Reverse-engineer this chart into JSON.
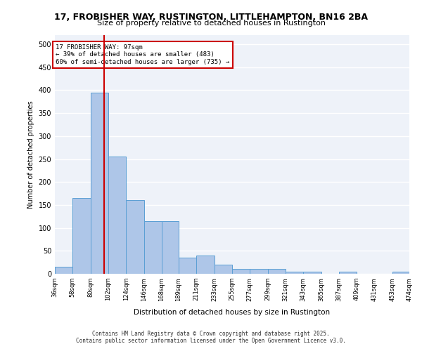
{
  "title1": "17, FROBISHER WAY, RUSTINGTON, LITTLEHAMPTON, BN16 2BA",
  "title2": "Size of property relative to detached houses in Rustington",
  "xlabel": "Distribution of detached houses by size in Rustington",
  "ylabel": "Number of detached properties",
  "footer1": "Contains HM Land Registry data © Crown copyright and database right 2025.",
  "footer2": "Contains public sector information licensed under the Open Government Licence v3.0.",
  "annotation_title": "17 FROBISHER WAY: 97sqm",
  "annotation_line2": "← 39% of detached houses are smaller (483)",
  "annotation_line3": "60% of semi-detached houses are larger (735) →",
  "property_size": 97,
  "bar_color": "#aec6e8",
  "bar_edge_color": "#5a9fd4",
  "vline_color": "#cc0000",
  "background_color": "#eef2f9",
  "grid_color": "#ffffff",
  "annotation_box_color": "#ffffff",
  "annotation_box_edge": "#cc0000",
  "bins": [
    36,
    58,
    80,
    102,
    124,
    146,
    168,
    189,
    211,
    233,
    255,
    277,
    299,
    321,
    343,
    365,
    387,
    409,
    431,
    453,
    474
  ],
  "bin_labels": [
    "36sqm",
    "58sqm",
    "80sqm",
    "102sqm",
    "124sqm",
    "146sqm",
    "168sqm",
    "189sqm",
    "211sqm",
    "233sqm",
    "255sqm",
    "277sqm",
    "299sqm",
    "321sqm",
    "343sqm",
    "365sqm",
    "387sqm",
    "409sqm",
    "431sqm",
    "453sqm",
    "474sqm"
  ],
  "counts": [
    15,
    165,
    395,
    255,
    160,
    115,
    115,
    35,
    40,
    20,
    10,
    10,
    10,
    5,
    5,
    0,
    5,
    0,
    0,
    5
  ],
  "ylim": [
    0,
    520
  ],
  "yticks": [
    0,
    50,
    100,
    150,
    200,
    250,
    300,
    350,
    400,
    450,
    500
  ]
}
